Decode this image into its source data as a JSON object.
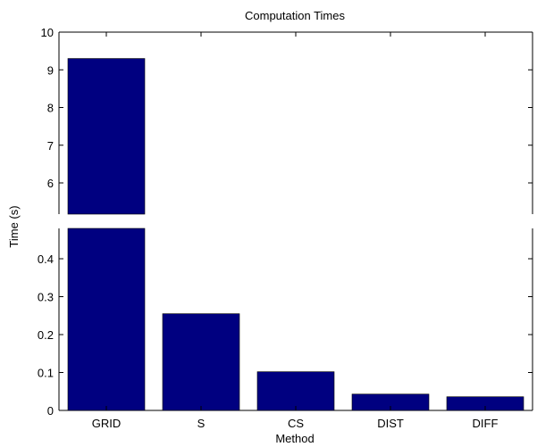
{
  "chart_data": {
    "type": "bar",
    "title": "Computation Times",
    "xlabel": "Method",
    "ylabel": "Time (s)",
    "categories": [
      "GRID",
      "S",
      "CS",
      "DIST",
      "DIFF"
    ],
    "values": [
      9.3,
      0.255,
      0.102,
      0.043,
      0.036
    ],
    "broken_axis": true,
    "upper_ylim": [
      5.2,
      10
    ],
    "upper_yticks": [
      "6",
      "7",
      "8",
      "9",
      "10"
    ],
    "lower_ylim": [
      0,
      0.48
    ],
    "lower_yticks": [
      "0",
      "0.1",
      "0.2",
      "0.3",
      "0.4"
    ],
    "bar_color": "#000080",
    "grid": false
  }
}
